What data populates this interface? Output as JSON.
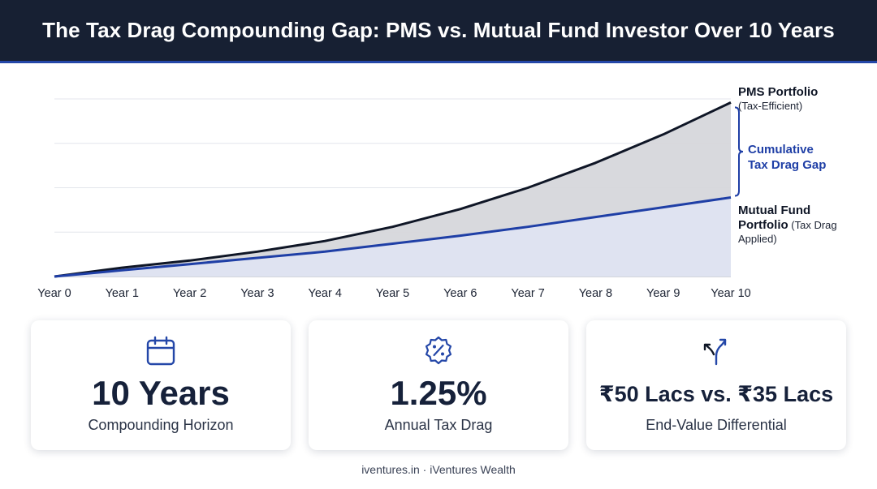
{
  "header": {
    "title": "The Tax Drag Compounding Gap: PMS vs. Mutual Fund Investor Over 10 Years"
  },
  "chart_data": {
    "type": "area",
    "title": "The Tax Drag Compounding Gap: PMS vs. Mutual Fund Investor Over 10 Years",
    "categories": [
      "Year 0",
      "Year 1",
      "Year 2",
      "Year 3",
      "Year 4",
      "Year 5",
      "Year 6",
      "Year 7",
      "Year 8",
      "Year 9",
      "Year 10"
    ],
    "series": [
      {
        "name": "PMS Portfolio",
        "name_suffix": "(Tax-Efficient)",
        "values": [
          0,
          5,
          9,
          14,
          20,
          28,
          38,
          50,
          64,
          80,
          98
        ],
        "color": "#0f1626"
      },
      {
        "name": "Mutual Fund Portfolio",
        "name_suffix": "(Tax Drag Applied)",
        "values": [
          0,
          3.5,
          7,
          10.5,
          14,
          18.5,
          23,
          28,
          33.5,
          39,
          44.5
        ],
        "color": "#1f3fa6"
      }
    ],
    "ylim": [
      0,
      100
    ],
    "grid": true,
    "annotation": {
      "line1": "Cumulative",
      "line2": "Tax Drag Gap"
    },
    "xlabel": "",
    "ylabel": ""
  },
  "cards": [
    {
      "icon": "calendar-icon",
      "value": "10 Years",
      "caption": "Compounding Horizon"
    },
    {
      "icon": "percent-badge-icon",
      "value": "1.25%",
      "caption": "Annual Tax Drag"
    },
    {
      "icon": "diverging-arrows-icon",
      "value": "₹50 Lacs vs. ₹35 Lacs",
      "caption": "End-Value Differential"
    }
  ],
  "footer": {
    "text": "iventures.in · iVentures Wealth"
  },
  "colors": {
    "header_bg": "#172033",
    "accent": "#1f3fa6",
    "dark": "#0f1626",
    "gap_fill": "#d6d7db",
    "mf_fill": "#dfe3f1"
  }
}
